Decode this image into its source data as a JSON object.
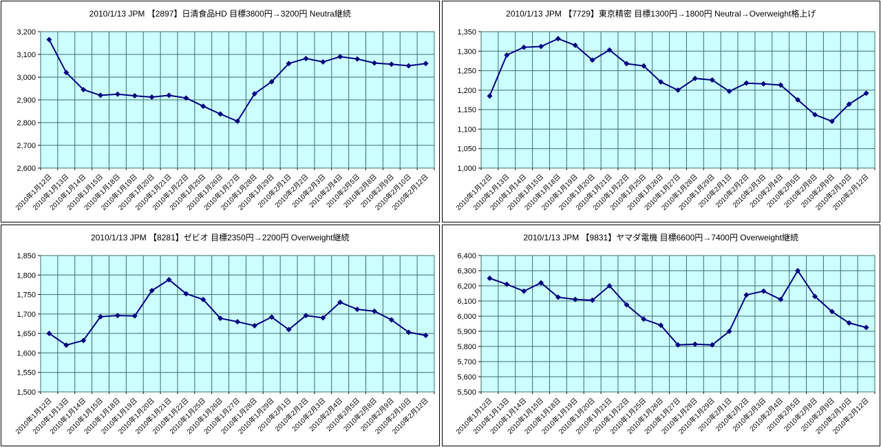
{
  "page": {
    "background": "#ffffff"
  },
  "chart_defaults": {
    "plot_bg": "#ccffff",
    "line_color": "#000080",
    "grid_color": "#3d6b6b",
    "axis_color": "#000000",
    "marker": "diamond",
    "legend": "none",
    "grid": "on"
  },
  "chart_data": [
    {
      "type": "line",
      "title": "2010/1/13 JPM 【2897】日清食品HD 目標3800円→3200円 Neutra継続",
      "ylim": [
        2600,
        3200
      ],
      "ystep": 100,
      "ytick_labels": [
        "3,200",
        "3,100",
        "3,000",
        "2,900",
        "2,800",
        "2,700",
        "2,600"
      ],
      "categories": [
        "2010年1月12日",
        "2010年1月13日",
        "2010年1月14日",
        "2010年1月15日",
        "2010年1月18日",
        "2010年1月19日",
        "2010年1月20日",
        "2010年1月21日",
        "2010年1月22日",
        "2010年1月25日",
        "2010年1月26日",
        "2010年1月27日",
        "2010年1月28日",
        "2010年1月29日",
        "2010年2月1日",
        "2010年2月2日",
        "2010年2月3日",
        "2010年2月4日",
        "2010年2月5日",
        "2010年2月8日",
        "2010年2月9日",
        "2010年2月10日",
        "2010年2月12日"
      ],
      "values": [
        3165,
        3020,
        2945,
        2920,
        2925,
        2918,
        2912,
        2920,
        2908,
        2872,
        2838,
        2806,
        2927,
        2980,
        3060,
        3082,
        3067,
        3090,
        3080,
        3062,
        3057,
        3050,
        3060
      ]
    },
    {
      "type": "line",
      "title": "2010/1/13 JPM 【7729】東京精密 目標1300円→1800円 Neutral→Overweight格上げ",
      "ylim": [
        1000,
        1350
      ],
      "ystep": 50,
      "ytick_labels": [
        "1,350",
        "1,300",
        "1,250",
        "1,200",
        "1,150",
        "1,100",
        "1,050",
        "1,000"
      ],
      "categories": [
        "2010年1月12日",
        "2010年1月13日",
        "2010年1月14日",
        "2010年1月15日",
        "2010年1月18日",
        "2010年1月19日",
        "2010年1月20日",
        "2010年1月21日",
        "2010年1月22日",
        "2010年1月25日",
        "2010年1月26日",
        "2010年1月27日",
        "2010年1月28日",
        "2010年1月29日",
        "2010年2月1日",
        "2010年2月2日",
        "2010年2月3日",
        "2010年2月4日",
        "2010年2月5日",
        "2010年2月8日",
        "2010年2月9日",
        "2010年2月10日",
        "2010年2月12日"
      ],
      "values": [
        1185,
        1290,
        1310,
        1312,
        1332,
        1315,
        1277,
        1303,
        1268,
        1262,
        1221,
        1200,
        1230,
        1226,
        1197,
        1218,
        1216,
        1213,
        1175,
        1137,
        1120,
        1164,
        1192
      ]
    },
    {
      "type": "line",
      "title": "2010/1/13 JPM 【8281】ゼビオ 目標2350円→2200円 Overweight継続",
      "ylim": [
        1500,
        1850
      ],
      "ystep": 50,
      "ytick_labels": [
        "1,850",
        "1,800",
        "1,750",
        "1,700",
        "1,650",
        "1,600",
        "1,550",
        "1,500"
      ],
      "categories": [
        "2010年1月12日",
        "2010年1月13日",
        "2010年1月14日",
        "2010年1月15日",
        "2010年1月18日",
        "2010年1月19日",
        "2010年1月20日",
        "2010年1月21日",
        "2010年1月22日",
        "2010年1月25日",
        "2010年1月26日",
        "2010年1月27日",
        "2010年1月28日",
        "2010年1月29日",
        "2010年2月1日",
        "2010年2月2日",
        "2010年2月3日",
        "2010年2月4日",
        "2010年2月5日",
        "2010年2月8日",
        "2010年2月9日",
        "2010年2月10日",
        "2010年2月12日"
      ],
      "values": [
        1650,
        1620,
        1632,
        1693,
        1696,
        1695,
        1760,
        1788,
        1752,
        1737,
        1689,
        1680,
        1670,
        1692,
        1660,
        1696,
        1690,
        1730,
        1712,
        1707,
        1685,
        1653,
        1645
      ]
    },
    {
      "type": "line",
      "title": "2010/1/13 JPM 【9831】ヤマダ電機 目標6600円→7400円 Overweight継続",
      "ylim": [
        5500,
        6400
      ],
      "ystep": 100,
      "ytick_labels": [
        "6,400",
        "6,300",
        "6,200",
        "6,100",
        "6,000",
        "5,900",
        "5,800",
        "5,700",
        "5,600",
        "5,500"
      ],
      "categories": [
        "2010年1月12日",
        "2010年1月13日",
        "2010年1月14日",
        "2010年1月15日",
        "2010年1月18日",
        "2010年1月19日",
        "2010年1月20日",
        "2010年1月21日",
        "2010年1月22日",
        "2010年1月25日",
        "2010年1月26日",
        "2010年1月27日",
        "2010年1月28日",
        "2010年1月29日",
        "2010年2月1日",
        "2010年2月2日",
        "2010年2月3日",
        "2010年2月4日",
        "2010年2月5日",
        "2010年2月8日",
        "2010年2月9日",
        "2010年2月10日",
        "2010年2月12日"
      ],
      "values": [
        6250,
        6210,
        6165,
        6220,
        6125,
        6110,
        6105,
        6200,
        6075,
        5980,
        5940,
        5810,
        5815,
        5810,
        5900,
        6140,
        6165,
        6110,
        6300,
        6130,
        6030,
        5955,
        5925
      ]
    }
  ]
}
